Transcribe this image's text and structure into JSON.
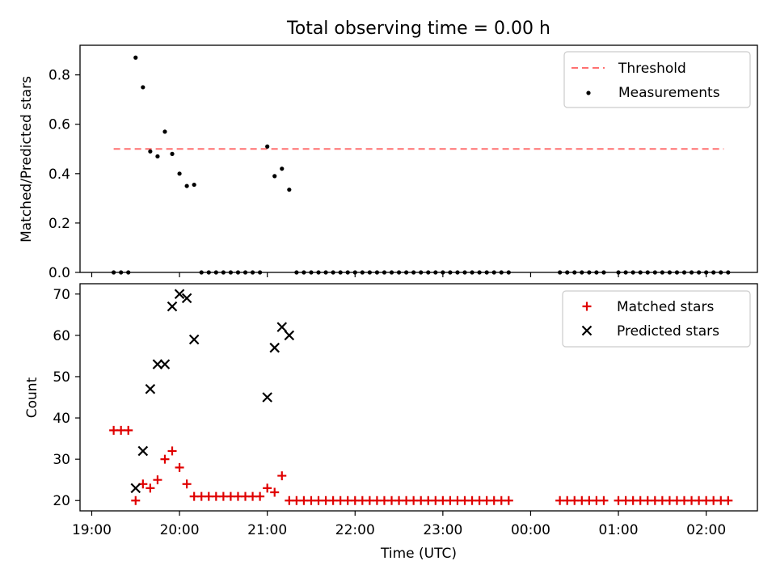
{
  "title": "Total observing time = 0.00 h",
  "colors": {
    "threshold": "#ff7070",
    "measurements": "#000000",
    "matched": "#e00000",
    "predicted": "#000000"
  },
  "chart_data": [
    {
      "type": "scatter",
      "title": "Total observing time = 0.00 h",
      "xlabel": "",
      "ylabel": "Matched/Predicted stars",
      "ylim": [
        0,
        0.92
      ],
      "yticks": [
        0.0,
        0.2,
        0.4,
        0.6,
        0.8
      ],
      "ytick_labels": [
        "0.0",
        "0.2",
        "0.4",
        "0.6",
        "0.8"
      ],
      "legend_position": "top-right",
      "threshold": {
        "name": "Threshold",
        "value": 0.5,
        "x_start": "19:15",
        "x_end": "02:12"
      },
      "series": [
        {
          "name": "Measurements",
          "marker": "dot",
          "x": [
            "19:15",
            "19:20",
            "19:25",
            "19:30",
            "19:35",
            "19:40",
            "19:45",
            "19:50",
            "19:55",
            "20:00",
            "20:05",
            "20:10",
            "20:15",
            "20:20",
            "20:25",
            "20:30",
            "20:35",
            "20:40",
            "20:45",
            "20:50",
            "20:55",
            "21:00",
            "21:05",
            "21:10",
            "21:15",
            "21:20",
            "21:25",
            "21:30",
            "21:35",
            "21:40",
            "21:45",
            "21:50",
            "21:55",
            "22:00",
            "22:05",
            "22:10",
            "22:15",
            "22:20",
            "22:25",
            "22:30",
            "22:35",
            "22:40",
            "22:45",
            "22:50",
            "22:55",
            "23:00",
            "23:05",
            "23:10",
            "23:15",
            "23:20",
            "23:25",
            "23:30",
            "23:35",
            "23:40",
            "23:45",
            "00:20",
            "00:25",
            "00:30",
            "00:35",
            "00:40",
            "00:45",
            "00:50",
            "01:00",
            "01:05",
            "01:10",
            "01:15",
            "01:20",
            "01:25",
            "01:30",
            "01:35",
            "01:40",
            "01:45",
            "01:50",
            "01:55",
            "02:00",
            "02:05",
            "02:10",
            "02:15"
          ],
          "values": [
            0,
            0,
            0,
            0.87,
            0.75,
            0.49,
            0.47,
            0.57,
            0.48,
            0.4,
            0.35,
            0.355,
            0,
            0,
            0,
            0,
            0,
            0,
            0,
            0,
            0,
            0.51,
            0.39,
            0.42,
            0.335,
            0,
            0,
            0,
            0,
            0,
            0,
            0,
            0,
            0,
            0,
            0,
            0,
            0,
            0,
            0,
            0,
            0,
            0,
            0,
            0,
            0,
            0,
            0,
            0,
            0,
            0,
            0,
            0,
            0,
            0,
            0,
            0,
            0,
            0,
            0,
            0,
            0,
            0,
            0,
            0,
            0,
            0,
            0,
            0,
            0,
            0,
            0,
            0,
            0,
            0,
            0,
            0,
            0
          ]
        }
      ]
    },
    {
      "type": "scatter",
      "xlabel": "Time (UTC)",
      "ylabel": "Count",
      "ylim": [
        17.5,
        72.5
      ],
      "yticks": [
        20,
        30,
        40,
        50,
        60,
        70
      ],
      "ytick_labels": [
        "20",
        "30",
        "40",
        "50",
        "60",
        "70"
      ],
      "xlim": [
        "18:52",
        "02:35"
      ],
      "xticks": [
        "19:00",
        "20:00",
        "21:00",
        "22:00",
        "23:00",
        "00:00",
        "01:00",
        "02:00"
      ],
      "xtick_labels": [
        "19:00",
        "20:00",
        "21:00",
        "22:00",
        "23:00",
        "00:00",
        "01:00",
        "02:00"
      ],
      "legend_position": "top-right",
      "series": [
        {
          "name": "Matched stars",
          "marker": "plus",
          "x": [
            "19:15",
            "19:20",
            "19:25",
            "19:30",
            "19:35",
            "19:40",
            "19:45",
            "19:50",
            "19:55",
            "20:00",
            "20:05",
            "20:10",
            "20:15",
            "20:20",
            "20:25",
            "20:30",
            "20:35",
            "20:40",
            "20:45",
            "20:50",
            "20:55",
            "21:00",
            "21:05",
            "21:10",
            "21:15",
            "21:20",
            "21:25",
            "21:30",
            "21:35",
            "21:40",
            "21:45",
            "21:50",
            "21:55",
            "22:00",
            "22:05",
            "22:10",
            "22:15",
            "22:20",
            "22:25",
            "22:30",
            "22:35",
            "22:40",
            "22:45",
            "22:50",
            "22:55",
            "23:00",
            "23:05",
            "23:10",
            "23:15",
            "23:20",
            "23:25",
            "23:30",
            "23:35",
            "23:40",
            "23:45",
            "00:20",
            "00:25",
            "00:30",
            "00:35",
            "00:40",
            "00:45",
            "00:50",
            "01:00",
            "01:05",
            "01:10",
            "01:15",
            "01:20",
            "01:25",
            "01:30",
            "01:35",
            "01:40",
            "01:45",
            "01:50",
            "01:55",
            "02:00",
            "02:05",
            "02:10",
            "02:15"
          ],
          "values": [
            37,
            37,
            37,
            20,
            24,
            23,
            25,
            30,
            32,
            28,
            24,
            21,
            21,
            21,
            21,
            21,
            21,
            21,
            21,
            21,
            21,
            23,
            22,
            26,
            20,
            20,
            20,
            20,
            20,
            20,
            20,
            20,
            20,
            20,
            20,
            20,
            20,
            20,
            20,
            20,
            20,
            20,
            20,
            20,
            20,
            20,
            20,
            20,
            20,
            20,
            20,
            20,
            20,
            20,
            20,
            20,
            20,
            20,
            20,
            20,
            20,
            20,
            20,
            20,
            20,
            20,
            20,
            20,
            20,
            20,
            20,
            20,
            20,
            20,
            20,
            20,
            20,
            20
          ]
        },
        {
          "name": "Predicted stars",
          "marker": "x",
          "x": [
            "19:30",
            "19:35",
            "19:40",
            "19:45",
            "19:50",
            "19:55",
            "20:00",
            "20:05",
            "20:10",
            "21:00",
            "21:05",
            "21:10",
            "21:15"
          ],
          "values": [
            23,
            32,
            47,
            53,
            53,
            67,
            70,
            69,
            59,
            45,
            57,
            62,
            60
          ]
        }
      ]
    }
  ]
}
